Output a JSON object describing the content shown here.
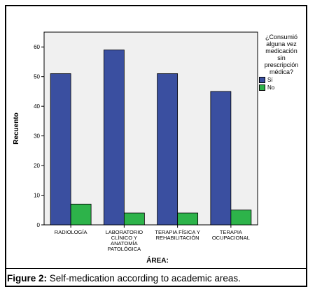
{
  "chart_data": {
    "type": "bar",
    "categories": [
      [
        "RADIOLOGÍA"
      ],
      [
        "LABORATORIO",
        "CLÍNICO Y",
        "ANATOMÍA",
        "PATOLÓGICA"
      ],
      [
        "TERAPIA FÍSICA Y",
        "REHABILITACIÓN"
      ],
      [
        "TERAPIA",
        "OCUPACIONAL"
      ]
    ],
    "series": [
      {
        "name": "Sí",
        "color": "#3a4fa0",
        "values": [
          51,
          59,
          51,
          45
        ]
      },
      {
        "name": "No",
        "color": "#2db34a",
        "values": [
          7,
          4,
          4,
          5
        ]
      }
    ],
    "xlabel": "ÁREA:",
    "ylabel": "Recuento",
    "ylim": [
      0,
      65
    ],
    "yticks": [
      0,
      10,
      20,
      30,
      40,
      50,
      60
    ],
    "legend": {
      "title_lines": [
        "¿Consumió",
        "alguna vez",
        "medicación",
        "sin",
        "prescripción",
        "médica?"
      ],
      "placement": "right"
    }
  },
  "caption": {
    "label": "Figure 2:",
    "text": " Self-medication according to academic areas."
  }
}
